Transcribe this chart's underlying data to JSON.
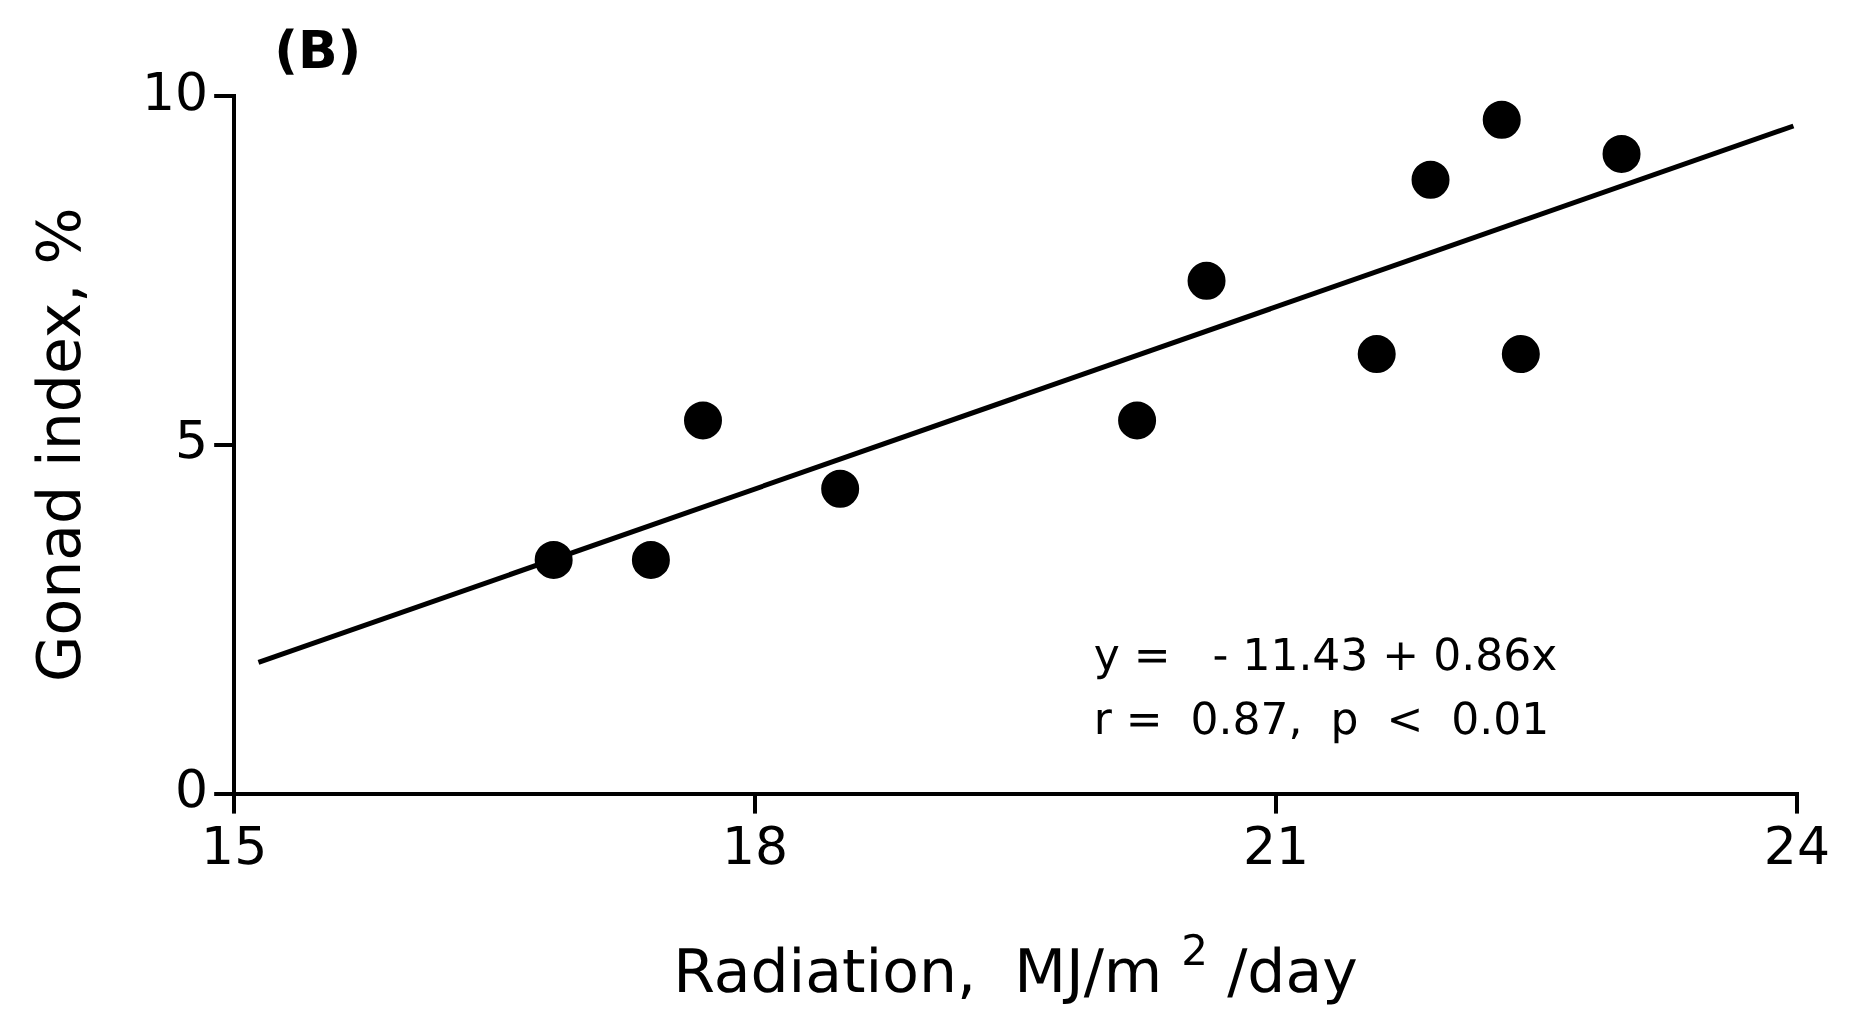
{
  "chart_data": {
    "type": "scatter",
    "title": "(B)",
    "xlabel": "Radiation,  MJ/m $^{2}$ /day",
    "ylabel": "Gonad index, %",
    "series": [
      {
        "color": "#000000",
        "marker": "circle",
        "x": [
          16.84,
          17.4,
          17.7,
          18.49,
          20.2,
          20.6,
          21.58,
          21.89,
          22.3,
          22.41,
          22.99
        ],
        "values": [
          3.35,
          3.35,
          5.35,
          4.37,
          5.35,
          7.35,
          6.3,
          8.8,
          9.66,
          6.3,
          9.17
        ]
      },
      {
        "type": "line",
        "marker": "none",
        "color": "#000000",
        "x": [
          15.14,
          23.98
        ],
        "values": [
          1.88,
          9.57
        ]
      }
    ],
    "annotations": [
      "y =   - 11.43 + 0.86x",
      "r =  0.87,  p  <  0.01"
    ],
    "xlim": [
      15,
      24
    ],
    "xticks": [
      15,
      18,
      21,
      24
    ],
    "ylim": [
      0,
      10
    ],
    "yticks": [
      0,
      5,
      10
    ],
    "grid": false,
    "legend": false
  }
}
